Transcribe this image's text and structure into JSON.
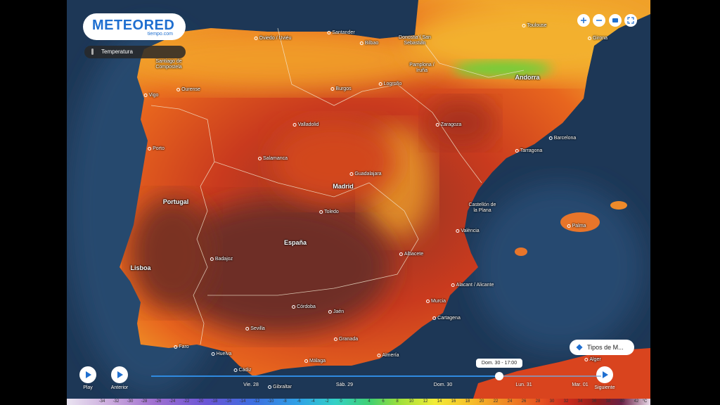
{
  "header": {
    "logo": "METEORED",
    "logo_sub": "tiempo.com",
    "layer": "Temperatura"
  },
  "controls": {
    "play": "Play",
    "previous": "Anterior",
    "next": "Siguiente",
    "map_types": "Tipos de M...",
    "current_time": "Dom. 30 - 17:00"
  },
  "timeline": [
    "Vie. 28",
    "Sáb. 29",
    "Dom. 30",
    "Lun. 31",
    "Mar. 01"
  ],
  "places": [
    "Oviedo / Uviéu",
    "Santander",
    "Bilbao",
    "Donostia / San Sebastián",
    "Toulouse",
    "Girona",
    "Santiago de Compostela",
    "Ourense",
    "Vigo",
    "Pamplona / Iruña",
    "Burgos",
    "Logroño",
    "Andorra",
    "Valladolid",
    "Zaragoza",
    "Barcelona",
    "Tarragona",
    "Porto",
    "Salamanca",
    "Guadalajara",
    "Madrid",
    "Portugal",
    "Toledo",
    "Castellón de la Plana",
    "Palma",
    "València",
    "España",
    "Albacete",
    "Badajoz",
    "Lisboa",
    "Alacant / Alicante",
    "Murcia",
    "Córdoba",
    "Jaén",
    "Cartagena",
    "Sevilla",
    "Huelva",
    "Granada",
    "Faro",
    "Almería",
    "Málaga",
    "Cádiz",
    "Gibraltar",
    "Alger"
  ],
  "legend": {
    "values": [
      -34,
      -32,
      -30,
      -28,
      -26,
      -24,
      -22,
      -20,
      -18,
      -16,
      -14,
      -12,
      -10,
      -8,
      -6,
      -4,
      -2,
      0,
      2,
      4,
      6,
      8,
      10,
      12,
      14,
      16,
      18,
      20,
      22,
      24,
      26,
      28,
      30,
      32,
      34,
      36,
      38,
      40,
      42
    ],
    "unit": "°C"
  }
}
